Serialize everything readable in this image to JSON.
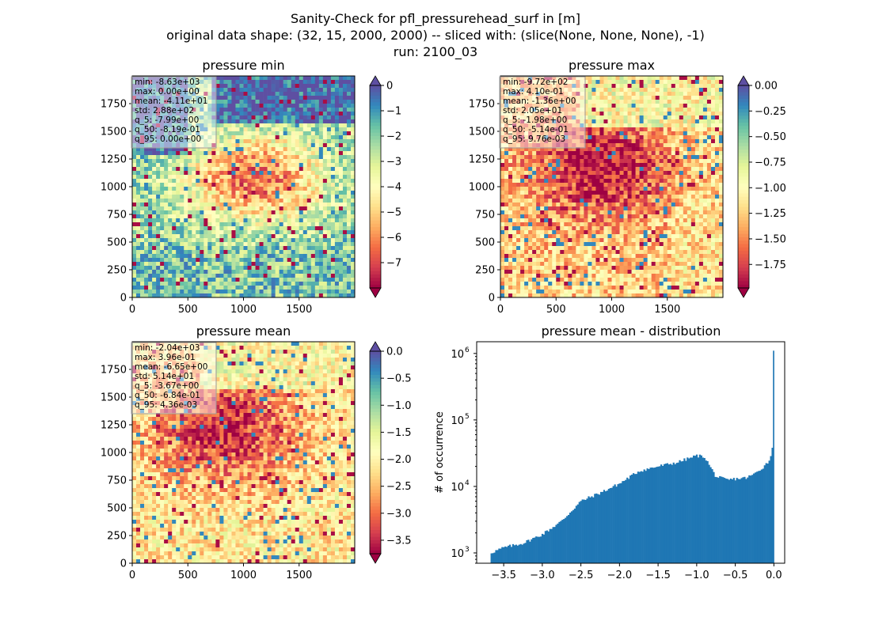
{
  "figure": {
    "title_lines": [
      "Sanity-Check for pfl_pressurehead_surf in [m]",
      "original data shape: (32, 15, 2000, 2000) -- sliced with: (slice(None, None, None), -1)",
      "run: 2100_03"
    ]
  },
  "panels": {
    "min": {
      "title": "pressure min",
      "stats": [
        "min: -8.63e+03",
        "max: 0.00e+00",
        "mean: -4.11e+01",
        "std: 2.88e+02",
        "q_5: -7.99e+00",
        "q_50: -8.19e-01",
        "q_95: 0.00e+00"
      ],
      "cbar_ticks": [
        "0",
        "−1",
        "−2",
        "−3",
        "−4",
        "−5",
        "−6",
        "−7"
      ],
      "cbar_range": [
        -8.0,
        0.0
      ],
      "cbar_ext": {
        "top": true,
        "bottom": true
      }
    },
    "max": {
      "title": "pressure max",
      "stats": [
        "min: -9.72e+02",
        "max: 4.10e-01",
        "mean: -1.36e+00",
        "std: 2.05e+01",
        "q_5: -1.98e+00",
        "q_50: -5.14e-01",
        "q_95: 9.76e-03"
      ],
      "cbar_ticks": [
        "0.00",
        "−0.25",
        "−0.50",
        "−0.75",
        "−1.00",
        "−1.25",
        "−1.50",
        "−1.75"
      ],
      "cbar_range": [
        -1.98,
        0.0
      ],
      "cbar_ext": {
        "top": true,
        "bottom": true
      }
    },
    "mean": {
      "title": "pressure mean",
      "stats": [
        "min: -2.04e+03",
        "max: 3.96e-01",
        "mean: -6.65e+00",
        "std: 5.14e+01",
        "q_5: -3.67e+00",
        "q_50: -6.84e-01",
        "q_95: 4.36e-03"
      ],
      "cbar_ticks": [
        "0.0",
        "−0.5",
        "−1.0",
        "−1.5",
        "−2.0",
        "−2.5",
        "−3.0",
        "−3.5"
      ],
      "cbar_range": [
        -3.75,
        0.0
      ],
      "cbar_ext": {
        "top": true,
        "bottom": true
      }
    }
  },
  "map_axes": {
    "xticks": [
      "0",
      "500",
      "1000",
      "1500"
    ],
    "yticks": [
      "0",
      "250",
      "500",
      "750",
      "1000",
      "1250",
      "1500",
      "1750"
    ],
    "extent": [
      0,
      2000
    ]
  },
  "colormap": [
    "#9e0142",
    "#d53e4f",
    "#f46d43",
    "#fdae61",
    "#fee08b",
    "#ffffbf",
    "#e6f598",
    "#abdda4",
    "#66c2a5",
    "#3288bd",
    "#5e4fa2"
  ],
  "chart_data": {
    "type": "bar",
    "title": "pressure mean - distribution",
    "xlabel": "",
    "ylabel": "# of occurrence",
    "yscale": "log",
    "ylim": [
      700,
      1500000
    ],
    "xlim": [
      -3.85,
      0.14
    ],
    "xticks": [
      "−3.5",
      "−3.0",
      "−2.5",
      "−2.0",
      "−1.5",
      "−1.0",
      "−0.5",
      "0.0"
    ],
    "yticks": [
      "10",
      "10",
      "10",
      "10"
    ],
    "ytick_exponents": [
      "3",
      "4",
      "5",
      "6"
    ],
    "color": "#1f77b4",
    "x": [
      -3.67,
      -3.5,
      -3.25,
      -3.0,
      -2.75,
      -2.5,
      -2.25,
      -2.0,
      -1.75,
      -1.5,
      -1.25,
      -1.0,
      -0.9,
      -0.75,
      -0.6,
      -0.5,
      -0.35,
      -0.25,
      -0.15,
      -0.05,
      -0.03,
      -0.01,
      0.0
    ],
    "values": [
      1000,
      1200,
      1400,
      1900,
      3000,
      6000,
      8000,
      11000,
      17000,
      20000,
      23000,
      29000,
      28000,
      14000,
      12500,
      13000,
      13500,
      15500,
      19000,
      25000,
      34000,
      48000,
      1100000
    ]
  }
}
